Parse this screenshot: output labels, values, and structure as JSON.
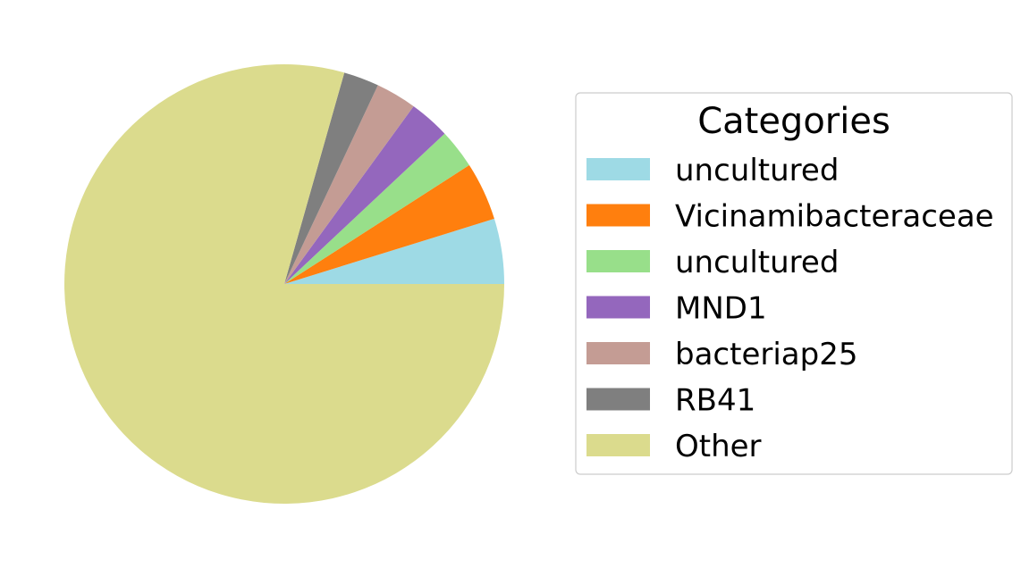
{
  "chart_data": {
    "type": "pie",
    "title": "",
    "legend_title": "Categories",
    "legend_position": "right",
    "start_angle_deg": 0,
    "direction": "counterclockwise",
    "slices": [
      {
        "label": "uncultured",
        "value": 4.8,
        "color": "#9edae5"
      },
      {
        "label": "Vicinamibacteraceae",
        "value": 4.3,
        "color": "#ff7f0e"
      },
      {
        "label": "uncultured",
        "value": 2.9,
        "color": "#98df8a"
      },
      {
        "label": "MND1",
        "value": 3.0,
        "color": "#9467bd"
      },
      {
        "label": "bacteriap25",
        "value": 3.0,
        "color": "#c49c94"
      },
      {
        "label": "RB41",
        "value": 2.6,
        "color": "#7f7f7f"
      },
      {
        "label": "Other",
        "value": 79.4,
        "color": "#dbdb8d"
      }
    ]
  }
}
